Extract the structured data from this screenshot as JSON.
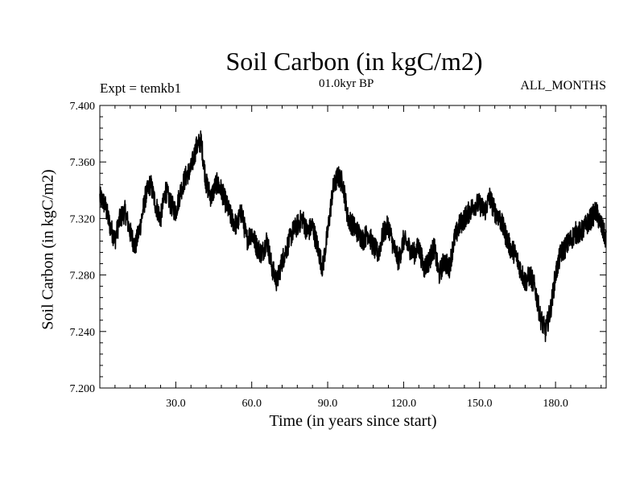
{
  "chart_data": {
    "type": "line",
    "title": "Soil Carbon (in kgC/m2)",
    "subtitle": "01.0kyr BP",
    "left_label": "Expt = temkb1",
    "right_label": "ALL_MONTHS",
    "xlabel": "Time (in years since start)",
    "ylabel": "Soil Carbon (in kgC/m2)",
    "xlim": [
      0,
      200
    ],
    "ylim": [
      7.2,
      7.4
    ],
    "x_ticks": [
      30,
      60,
      90,
      120,
      150,
      180
    ],
    "x_tick_labels": [
      "30.0",
      "60.0",
      "90.0",
      "120.0",
      "150.0",
      "180.0"
    ],
    "y_ticks": [
      7.2,
      7.24,
      7.28,
      7.32,
      7.36,
      7.4
    ],
    "y_tick_labels": [
      "7.200",
      "7.240",
      "7.280",
      "7.320",
      "7.360",
      "7.400"
    ],
    "series": [
      {
        "name": "Soil Carbon",
        "x": [
          0,
          2,
          4,
          6,
          8,
          10,
          12,
          14,
          16,
          18,
          20,
          22,
          24,
          26,
          28,
          30,
          32,
          34,
          36,
          38,
          40,
          42,
          44,
          46,
          48,
          50,
          52,
          54,
          56,
          58,
          60,
          62,
          64,
          66,
          68,
          70,
          72,
          74,
          76,
          78,
          80,
          82,
          84,
          86,
          88,
          90,
          92,
          94,
          96,
          98,
          100,
          102,
          104,
          106,
          108,
          110,
          112,
          114,
          116,
          118,
          120,
          122,
          124,
          126,
          128,
          130,
          132,
          134,
          136,
          138,
          140,
          142,
          144,
          146,
          148,
          150,
          152,
          154,
          156,
          158,
          160,
          162,
          164,
          166,
          168,
          170,
          172,
          174,
          176,
          178,
          180,
          182,
          184,
          186,
          188,
          190,
          192,
          194,
          196,
          198,
          200
        ],
        "values": [
          7.335,
          7.33,
          7.315,
          7.305,
          7.32,
          7.325,
          7.31,
          7.3,
          7.315,
          7.335,
          7.345,
          7.33,
          7.32,
          7.34,
          7.33,
          7.325,
          7.34,
          7.35,
          7.355,
          7.37,
          7.375,
          7.345,
          7.335,
          7.345,
          7.34,
          7.33,
          7.32,
          7.315,
          7.325,
          7.305,
          7.31,
          7.3,
          7.295,
          7.305,
          7.285,
          7.275,
          7.29,
          7.3,
          7.31,
          7.315,
          7.32,
          7.31,
          7.315,
          7.3,
          7.285,
          7.31,
          7.34,
          7.35,
          7.345,
          7.32,
          7.315,
          7.31,
          7.305,
          7.31,
          7.3,
          7.295,
          7.31,
          7.315,
          7.3,
          7.29,
          7.305,
          7.3,
          7.295,
          7.3,
          7.285,
          7.29,
          7.3,
          7.28,
          7.29,
          7.285,
          7.305,
          7.315,
          7.32,
          7.325,
          7.33,
          7.33,
          7.325,
          7.335,
          7.325,
          7.32,
          7.31,
          7.3,
          7.295,
          7.285,
          7.275,
          7.28,
          7.27,
          7.25,
          7.24,
          7.255,
          7.28,
          7.295,
          7.3,
          7.305,
          7.31,
          7.31,
          7.315,
          7.32,
          7.325,
          7.315,
          7.305
        ]
      }
    ]
  }
}
